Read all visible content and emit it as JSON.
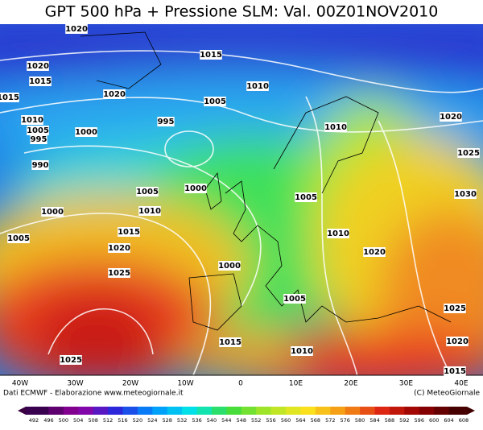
{
  "title": "GPT 500 hPa + Pressione SLM: Val. 00Z01NOV2010",
  "isobar_labels": [
    "1020",
    "1015",
    "1020",
    "1015",
    "1020",
    "1015",
    "1010",
    "1005",
    "1010",
    "1005",
    "1000",
    "995",
    "995",
    "1010",
    "1020",
    "1025",
    "990",
    "1005",
    "1000",
    "1005",
    "1030",
    "1000",
    "1010",
    "1005",
    "1015",
    "1010",
    "1020",
    "1020",
    "1000",
    "1025",
    "1005",
    "1025",
    "1015",
    "1010",
    "1020",
    "1025",
    "1015"
  ],
  "longitude_labels": [
    "40W",
    "30W",
    "20W",
    "10W",
    "0",
    "10E",
    "20E",
    "30E",
    "40E"
  ],
  "credit_left": "Dati ECMWF - Elaborazione www.meteogiornale.it",
  "credit_right": "(C) MeteoGiornale",
  "colorbar_ticks": [
    492,
    496,
    500,
    504,
    508,
    512,
    516,
    520,
    524,
    528,
    532,
    536,
    540,
    544,
    548,
    552,
    556,
    560,
    564,
    568,
    572,
    576,
    580,
    584,
    588,
    592,
    596,
    600,
    604,
    608
  ]
}
